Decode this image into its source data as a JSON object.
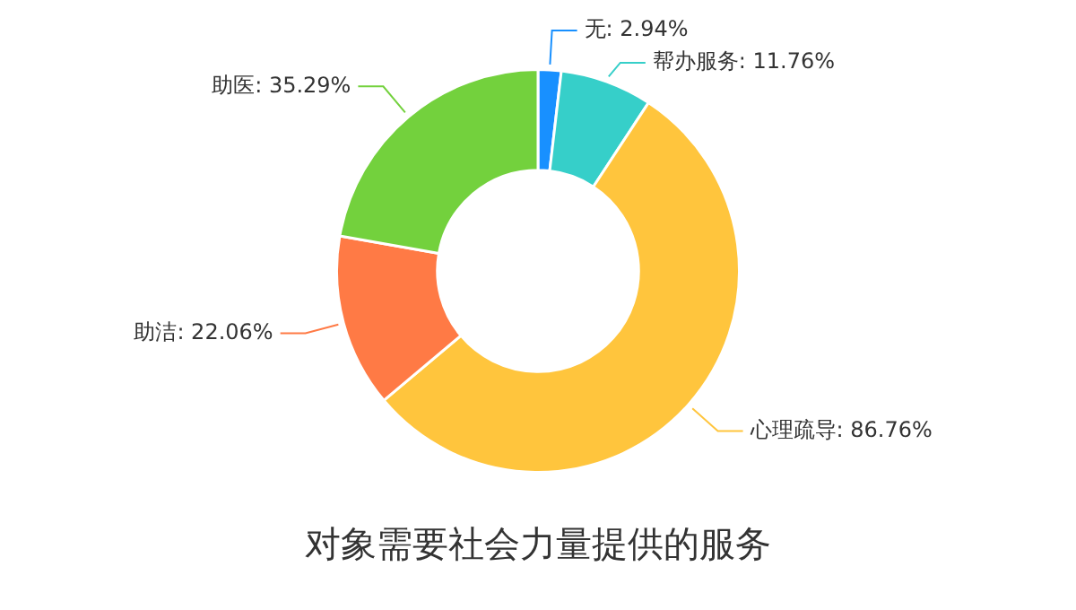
{
  "chart_data": {
    "type": "donut",
    "title": "对象需要社会力量提供的服务",
    "categories": [
      "无",
      "帮办服务",
      "心理疏导",
      "助洁",
      "助医"
    ],
    "values": [
      2.94,
      11.76,
      86.76,
      22.06,
      35.29
    ],
    "value_labels": [
      "2.94%",
      "11.76%",
      "86.76%",
      "22.06%",
      "35.29%"
    ],
    "colors": [
      "#1890ff",
      "#36cfc9",
      "#ffc53d",
      "#ff7a45",
      "#73d13d"
    ],
    "legend": false
  }
}
